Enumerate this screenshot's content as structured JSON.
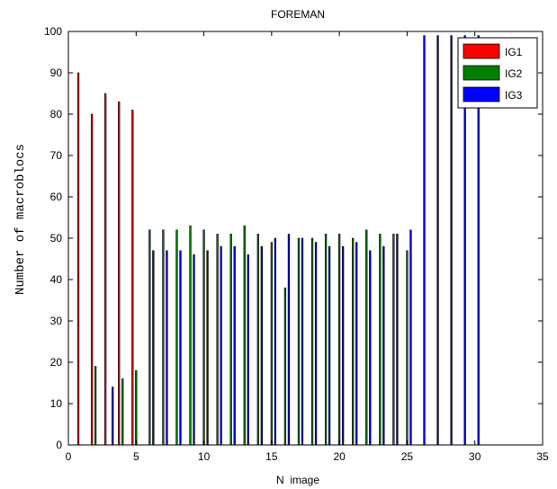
{
  "chart_data": {
    "type": "bar",
    "title": "FOREMAN",
    "xlabel": "N  image",
    "ylabel": "Number of macroblocs",
    "xlim": [
      0,
      35
    ],
    "ylim": [
      0,
      100
    ],
    "xticks": [
      0,
      5,
      10,
      15,
      20,
      25,
      30,
      35
    ],
    "yticks": [
      0,
      10,
      20,
      30,
      40,
      50,
      60,
      70,
      80,
      90,
      100
    ],
    "grid": false,
    "legend_position": "top-right",
    "x": [
      1,
      2,
      3,
      4,
      5,
      6,
      7,
      8,
      9,
      10,
      11,
      12,
      13,
      14,
      15,
      16,
      17,
      18,
      19,
      20,
      21,
      22,
      23,
      24,
      25,
      26,
      27,
      28,
      29,
      30
    ],
    "series": [
      {
        "name": "IG1",
        "color": "#ff0000",
        "values": [
          90,
          80,
          85,
          83,
          81,
          0,
          0,
          0,
          0,
          0,
          0,
          0,
          0,
          0,
          0,
          0,
          0,
          0,
          0,
          0,
          0,
          0,
          0,
          0,
          0,
          0,
          0,
          0,
          0,
          0
        ]
      },
      {
        "name": "IG2",
        "color": "#008000",
        "values": [
          0,
          19,
          0,
          16,
          18,
          52,
          52,
          52,
          53,
          52,
          51,
          51,
          53,
          51,
          49,
          38,
          50,
          50,
          51,
          51,
          50,
          52,
          51,
          51,
          47,
          0,
          0,
          0,
          0,
          0
        ]
      },
      {
        "name": "IG3",
        "color": "#0000ff",
        "values": [
          0,
          0,
          14,
          0,
          0,
          47,
          47,
          47,
          46,
          47,
          48,
          48,
          46,
          48,
          50,
          51,
          50,
          49,
          48,
          48,
          49,
          47,
          48,
          51,
          52,
          99,
          99,
          99,
          99,
          99
        ]
      }
    ]
  }
}
